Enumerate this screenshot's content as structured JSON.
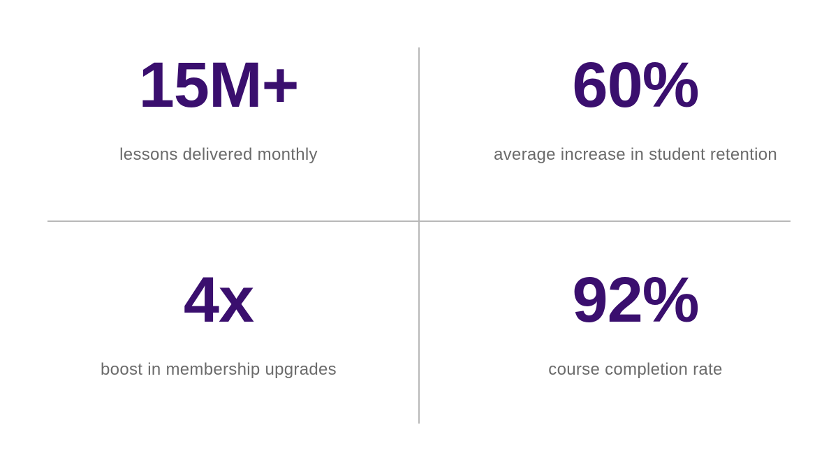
{
  "stats": [
    {
      "value": "15M+",
      "label": "lessons delivered monthly"
    },
    {
      "value": "60%",
      "label": "average increase in student retention"
    },
    {
      "value": "4x",
      "label": "boost in membership upgrades"
    },
    {
      "value": "92%",
      "label": "course completion rate"
    }
  ]
}
